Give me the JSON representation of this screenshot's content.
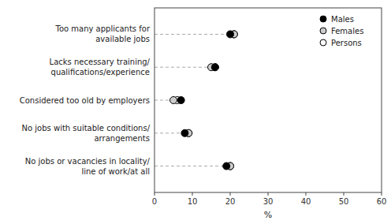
{
  "chart_data": {
    "type": "dot",
    "orientation": "horizontal",
    "categories": [
      "No jobs or vacancies in locality/\nline of work/at all",
      "No jobs with suitable conditions/\narrangements",
      "Considered too old by employers",
      "Lacks necessary training/\nqualifications/experience",
      "Too many applicants for\navailable jobs"
    ],
    "series": [
      {
        "name": "Males",
        "color": "black",
        "marker": "circle",
        "values": [
          19,
          8,
          7,
          16,
          20
        ]
      },
      {
        "name": "Females",
        "color": "#cccccc",
        "marker": "circle",
        "values": [
          20,
          9,
          5,
          15,
          21
        ]
      },
      {
        "name": "Persons",
        "color": "white",
        "marker": "circle",
        "values": [
          20,
          9,
          6,
          16,
          21
        ]
      }
    ],
    "x_label": "%",
    "xlim": [
      0,
      60
    ],
    "xticks": [
      0,
      10,
      20,
      30,
      40,
      50,
      60
    ],
    "grid": false,
    "legend": "upper right"
  }
}
